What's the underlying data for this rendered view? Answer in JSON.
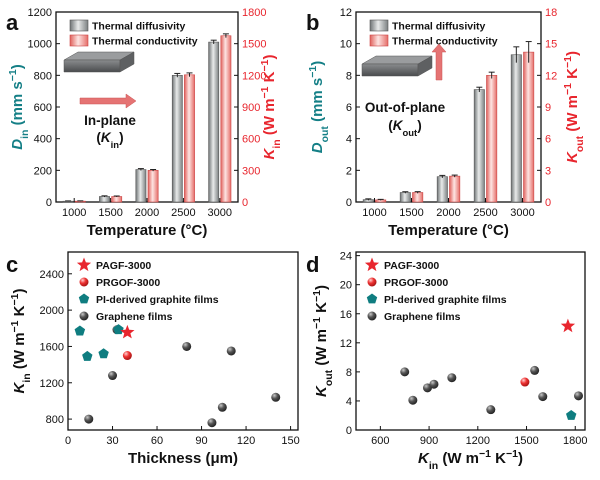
{
  "colors": {
    "diffusivity": "#9a9e9f",
    "conductivity": "#ef8f8a",
    "teal_axis": "#147f86",
    "red_axis": "#e8262e",
    "pagf": "#e8262e",
    "prgof": "#ee3333",
    "pi": "#0f7d80",
    "graphene": "#555555",
    "arrow": "#e57373"
  },
  "chart_data": [
    {
      "panel": "a",
      "type": "bar",
      "categories": [
        "1000",
        "1500",
        "2000",
        "2500",
        "3000"
      ],
      "xlabel": "Temperature (°C)",
      "ylabel_left": "Din (mm s−1)",
      "ylabel_right": "Kin (W m−1 K−1)",
      "ylim_left": [
        0,
        1200
      ],
      "ylim_right": [
        0,
        1800
      ],
      "yticks_left": [
        "0",
        "200",
        "400",
        "600",
        "800",
        "1000",
        "1200"
      ],
      "yticks_right": [
        "0",
        "300",
        "600",
        "900",
        "1200",
        "1500",
        "1800"
      ],
      "series": [
        {
          "name": "Thermal diffusivity",
          "axis": "left",
          "values": [
            5,
            35,
            205,
            800,
            1010
          ],
          "errors": [
            2,
            4,
            6,
            12,
            12
          ]
        },
        {
          "name": "Thermal conductivity",
          "axis": "right",
          "values": [
            8,
            52,
            300,
            1205,
            1575
          ],
          "errors": [
            3,
            5,
            8,
            18,
            18
          ]
        }
      ],
      "inset_text": [
        "In-plane",
        "(Kin)"
      ]
    },
    {
      "panel": "b",
      "type": "bar",
      "categories": [
        "1000",
        "1500",
        "2000",
        "2500",
        "3000"
      ],
      "xlabel": "Temperature (°C)",
      "ylabel_left": "Dout (mm s−1)",
      "ylabel_right": "Kout (W m−1 K−1)",
      "ylim_left": [
        0,
        12
      ],
      "ylim_right": [
        0,
        18
      ],
      "yticks_left": [
        "0",
        "2",
        "4",
        "6",
        "8",
        "10",
        "12"
      ],
      "yticks_right": [
        "0",
        "3",
        "6",
        "9",
        "12",
        "15",
        "18"
      ],
      "series": [
        {
          "name": "Thermal diffusivity",
          "axis": "left",
          "values": [
            0.15,
            0.6,
            1.6,
            7.1,
            9.3
          ],
          "errors": [
            0.05,
            0.05,
            0.08,
            0.15,
            0.5
          ]
        },
        {
          "name": "Thermal conductivity",
          "axis": "right",
          "values": [
            0.2,
            0.9,
            2.45,
            12.0,
            14.2
          ],
          "errors": [
            0.05,
            0.08,
            0.1,
            0.3,
            1.0
          ]
        }
      ],
      "inset_text": [
        "Out-of-plane",
        "(Kout)"
      ]
    },
    {
      "panel": "c",
      "type": "scatter",
      "xlabel": "Thickness (μm)",
      "ylabel": "Kin (W m−1 K−1)",
      "xlim": [
        0,
        155
      ],
      "ylim": [
        680,
        2640
      ],
      "xticks": [
        "0",
        "30",
        "60",
        "90",
        "120",
        "150"
      ],
      "yticks": [
        "800",
        "1200",
        "1600",
        "2000",
        "2400"
      ],
      "series": [
        {
          "name": "PAGF-3000",
          "marker": "star",
          "points": [
            [
              40,
              1755
            ]
          ]
        },
        {
          "name": "PRGOF-3000",
          "marker": "circle",
          "points": [
            [
              40,
              1500
            ]
          ]
        },
        {
          "name": "PI-derived graphite films",
          "marker": "pentagon",
          "points": [
            [
              8,
              1770
            ],
            [
              13,
              1490
            ],
            [
              24,
              1520
            ],
            [
              34,
              1785
            ]
          ]
        },
        {
          "name": "Graphene films",
          "marker": "sphere",
          "points": [
            [
              14,
              800
            ],
            [
              30,
              1280
            ],
            [
              33,
              1785
            ],
            [
              80,
              1600
            ],
            [
              97,
              760
            ],
            [
              104,
              930
            ],
            [
              110,
              1550
            ],
            [
              140,
              1040
            ]
          ]
        }
      ]
    },
    {
      "panel": "d",
      "type": "scatter",
      "xlabel": "Kin (W m−1 K−1)",
      "ylabel": "Kout (W m−1 K−1)",
      "xlim": [
        450,
        1860
      ],
      "ylim": [
        0,
        24.5
      ],
      "xticks": [
        "600",
        "900",
        "1200",
        "1500",
        "1800"
      ],
      "yticks": [
        "0",
        "4",
        "8",
        "12",
        "16",
        "20",
        "24"
      ],
      "series": [
        {
          "name": "PAGF-3000",
          "marker": "star",
          "points": [
            [
              1755,
              14.3
            ]
          ]
        },
        {
          "name": "PRGOF-3000",
          "marker": "circle",
          "points": [
            [
              1490,
              6.6
            ]
          ]
        },
        {
          "name": "PI-derived graphite films",
          "marker": "pentagon",
          "points": [
            [
              1775,
              2.0
            ]
          ]
        },
        {
          "name": "Graphene films",
          "marker": "sphere",
          "points": [
            [
              750,
              8.0
            ],
            [
              800,
              4.1
            ],
            [
              890,
              5.8
            ],
            [
              930,
              6.3
            ],
            [
              1040,
              7.2
            ],
            [
              1280,
              2.8
            ],
            [
              1550,
              8.2
            ],
            [
              1600,
              4.6
            ],
            [
              1820,
              4.7
            ]
          ]
        }
      ]
    }
  ]
}
